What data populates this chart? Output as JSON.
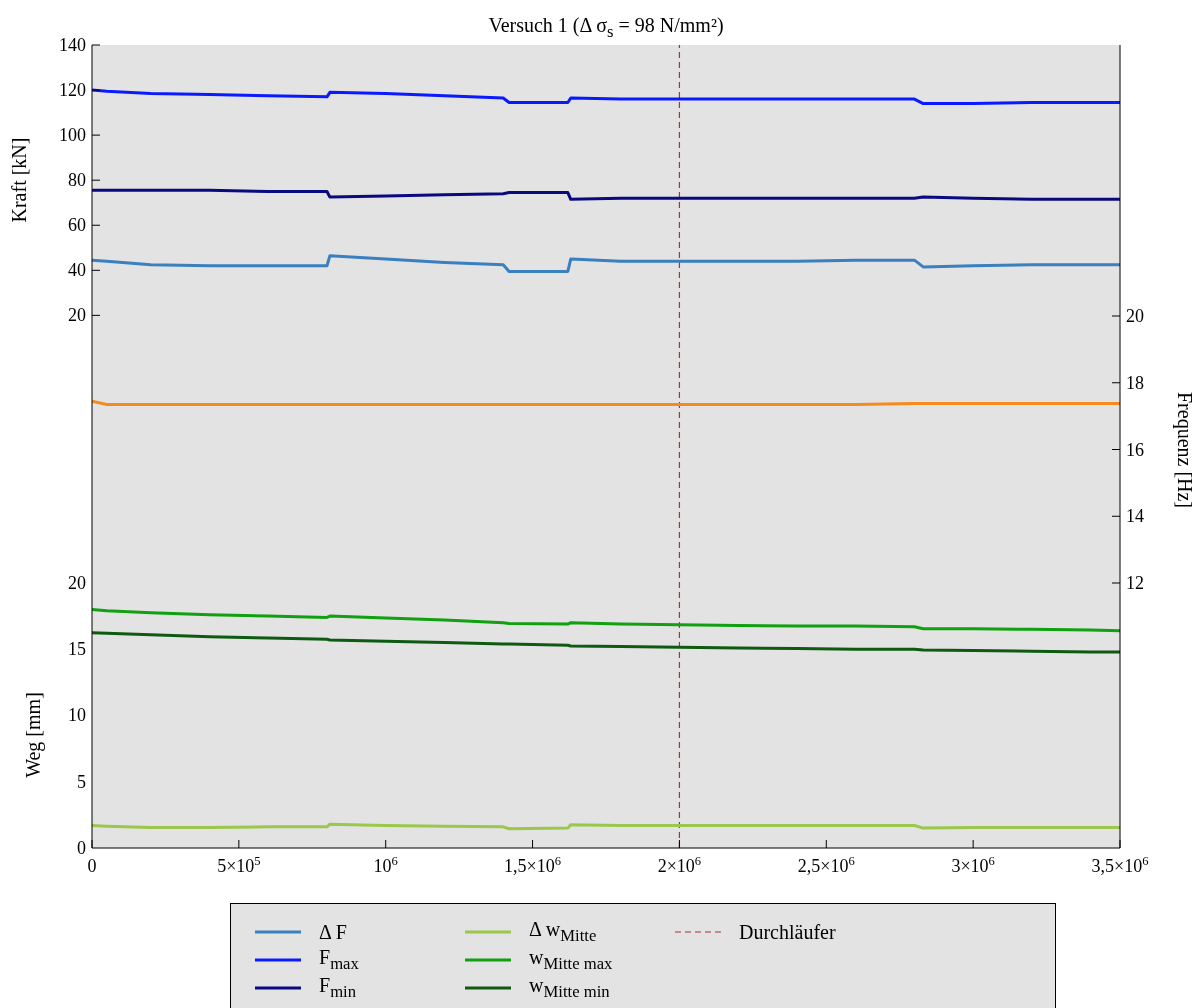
{
  "chart_data": {
    "type": "line",
    "title": "Versuch 1 (Δ σ$_{s}$ = 98 N/mm²)",
    "ylabel": "Kraft [kN]",
    "y2label": "Frequenz [Hz]",
    "y3label": "Weg [mm]",
    "x": [
      0,
      50000,
      200000,
      400000,
      600000,
      800000,
      810000,
      1000000,
      1200000,
      1400000,
      1420000,
      1620000,
      1630000,
      1800000,
      2000000,
      2200000,
      2400000,
      2600000,
      2800000,
      2830000,
      3000000,
      3200000,
      3400000,
      3500000
    ],
    "series": [
      {
        "name": "Δ F",
        "color": "#3a7fc0",
        "values": [
          44.5,
          44,
          42.5,
          42,
          42,
          42,
          46.5,
          45,
          43.5,
          42.5,
          39.5,
          39.5,
          45,
          44,
          44,
          44,
          44,
          44.5,
          44.5,
          41.5,
          42,
          42.5,
          42.5,
          42.5
        ]
      },
      {
        "name": "F$_{max}$",
        "color": "#0a1aff",
        "values": [
          120,
          119.5,
          118.5,
          118,
          117.5,
          117,
          119,
          118.5,
          117.5,
          116.5,
          114.5,
          114.5,
          116.5,
          116,
          116,
          116,
          116,
          116,
          116,
          114,
          114,
          114.5,
          114.5,
          114.5
        ]
      },
      {
        "name": "F$_{min}$",
        "color": "#0a0a80",
        "values": [
          75.5,
          75.5,
          75.5,
          75.5,
          75,
          75,
          72.5,
          73,
          73.5,
          74,
          74.5,
          74.5,
          71.5,
          72,
          72,
          72,
          72,
          72,
          72,
          72.5,
          72,
          71.5,
          71.5,
          71.5
        ]
      },
      {
        "color": "#f58a1f",
        "axis": "y2",
        "values": [
          17.45,
          17.35,
          17.35,
          17.35,
          17.35,
          17.35,
          17.35,
          17.35,
          17.35,
          17.35,
          17.35,
          17.35,
          17.35,
          17.35,
          17.35,
          17.35,
          17.35,
          17.35,
          17.38,
          17.38,
          17.38,
          17.38,
          17.38,
          17.38
        ]
      },
      {
        "name": "Δ w$_{Mitte}$",
        "color": "#9bc84a",
        "axis": "y3",
        "values": [
          1.7,
          1.65,
          1.55,
          1.55,
          1.6,
          1.6,
          1.8,
          1.7,
          1.65,
          1.6,
          1.45,
          1.5,
          1.75,
          1.7,
          1.7,
          1.7,
          1.7,
          1.7,
          1.7,
          1.5,
          1.55,
          1.55,
          1.55,
          1.55
        ]
      },
      {
        "name": "w$_{Mitte max}$",
        "color": "#10a010",
        "axis": "y3",
        "values": [
          18.0,
          17.9,
          17.75,
          17.6,
          17.5,
          17.4,
          17.5,
          17.35,
          17.2,
          17.0,
          16.95,
          16.9,
          17.0,
          16.9,
          16.85,
          16.8,
          16.75,
          16.75,
          16.7,
          16.55,
          16.55,
          16.5,
          16.45,
          16.4
        ]
      },
      {
        "name": "w$_{Mitte min}$",
        "color": "#0e5a10",
        "axis": "y3",
        "values": [
          16.25,
          16.2,
          16.1,
          15.95,
          15.85,
          15.75,
          15.7,
          15.6,
          15.5,
          15.4,
          15.4,
          15.3,
          15.25,
          15.2,
          15.15,
          15.1,
          15.05,
          15.0,
          15.0,
          14.95,
          14.9,
          14.85,
          14.8,
          14.8
        ]
      }
    ],
    "xlim": [
      0,
      3500000
    ],
    "xticks": [
      0,
      {
        "value": 500000,
        "label": "5×10$^{5}$"
      },
      {
        "value": 1000000,
        "label": "10$^{6}$"
      },
      {
        "value": 1500000,
        "label": "1,5×10$^{6}$"
      },
      {
        "value": 2000000,
        "label": "2×10$^{6}$"
      },
      {
        "value": 2500000,
        "label": "2,5×10$^{6}$"
      },
      {
        "value": 3000000,
        "label": "3×10$^{6}$"
      },
      {
        "value": 3500000,
        "label": "3,5×10$^{6}$"
      }
    ],
    "ylim": [
      -216.4,
      140
    ],
    "yticks": [
      20,
      40,
      60,
      80,
      100,
      120,
      140
    ],
    "y2lim": [
      4.06,
      28.12
    ],
    "y2ticks": [
      12,
      14,
      16,
      18,
      20
    ],
    "y3lim": [
      0,
      60.6
    ],
    "y3ticks": [
      0,
      5,
      10,
      15,
      20
    ],
    "ref_lines": [
      {
        "axis": "x",
        "value": 2000000,
        "label": "Durchläufer",
        "color": "#b03030",
        "line_style": "dashed"
      }
    ],
    "legend": "bottom"
  }
}
